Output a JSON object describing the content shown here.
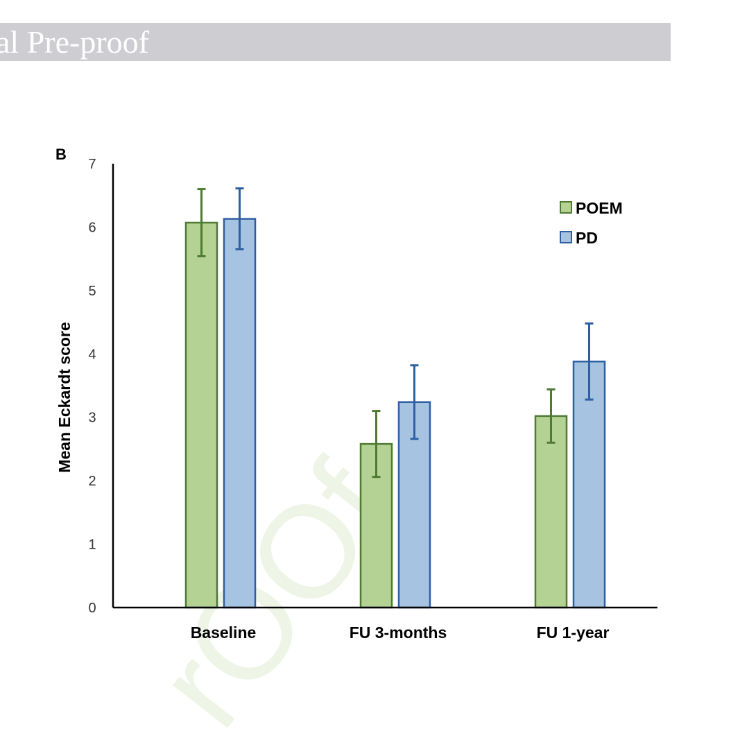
{
  "banner": {
    "text": "al Pre-proof"
  },
  "watermark": {
    "text": "rOOf"
  },
  "panel_letter": "B",
  "colors": {
    "poem_fill": "#b5d295",
    "poem_stroke": "#4e7a32",
    "pd_fill": "#a7c3e2",
    "pd_stroke": "#2f5fa3",
    "banner": "#cdcdd2"
  },
  "chart_data": {
    "type": "bar",
    "categories": [
      "Baseline",
      "FU 3-months",
      "FU 1-year"
    ],
    "series": [
      {
        "name": "POEM",
        "values": [
          6.07,
          2.58,
          3.02
        ],
        "error": [
          0.53,
          0.52,
          0.42
        ]
      },
      {
        "name": "PD",
        "values": [
          6.13,
          3.24,
          3.88
        ],
        "error": [
          0.48,
          0.58,
          0.6
        ]
      }
    ],
    "ylabel": "Mean Eckardt score",
    "xlabel": "",
    "ylim": [
      0,
      7
    ],
    "yticks": [
      0,
      1,
      2,
      3,
      4,
      5,
      6,
      7
    ],
    "legend_position": "top-right",
    "grid": false
  }
}
